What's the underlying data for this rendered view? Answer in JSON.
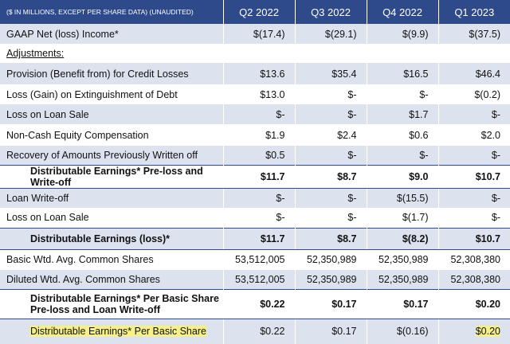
{
  "table": {
    "header": [
      "($ IN MILLIONS, EXCEPT PER SHARE DATA) (UNAUDITED)",
      "Q2 2022",
      "Q3 2022",
      "Q4 2022",
      "Q1 2023"
    ],
    "rows": [
      [
        "GAAP Net (loss) Income*",
        "$(17.4)",
        "$(29.1)",
        "$(9.9)",
        "$(37.5)"
      ],
      [
        "Adjustments:"
      ],
      [
        "Provision (Benefit from) for Credit Losses",
        "$13.6",
        "$35.4",
        "$16.5",
        "$46.4"
      ],
      [
        "Loss (Gain) on Extinguishment of Debt",
        "$13.0",
        "$-",
        "$-",
        "$(0.2)"
      ],
      [
        "Loss on Loan Sale",
        "$-",
        "$-",
        "$1.7",
        "$-"
      ],
      [
        "Non-Cash Equity Compensation",
        "$1.9",
        "$2.4",
        "$0.6",
        "$2.0"
      ],
      [
        "Recovery of Amounts Previously Written off",
        "$0.5",
        "$-",
        "$-",
        "$-"
      ],
      [
        "Distributable Earnings* Pre-loss and Write-off",
        "$11.7",
        "$8.7",
        "$9.0",
        "$10.7"
      ],
      [
        "Loan Write-off",
        "$-",
        "$-",
        "$(15.5)",
        "$-"
      ],
      [
        "Loss on Loan Sale",
        "$-",
        "$-",
        "$(1.7)",
        "$-"
      ],
      [
        "Distributable Earnings (loss)*",
        "$11.7",
        "$8.7",
        "$(8.2)",
        "$10.7"
      ],
      [
        "Basic Wtd. Avg. Common Shares",
        "53,512,005",
        "52,350,989",
        "52,350,989",
        "52,308,380"
      ],
      [
        "Diluted Wtd. Avg. Common Shares",
        "53,512,005",
        "52,350,989",
        "52,350,989",
        "52,308,380"
      ],
      [
        "Distributable Earnings* Per Basic Share Pre-loss and Loan Write-off",
        "$0.22",
        "$0.17",
        "$0.17",
        "$0.20"
      ],
      [
        "Distributable Earnings* Per Basic Share",
        "$0.22",
        "$0.17",
        "$(0.16)",
        "$0.20"
      ]
    ]
  }
}
